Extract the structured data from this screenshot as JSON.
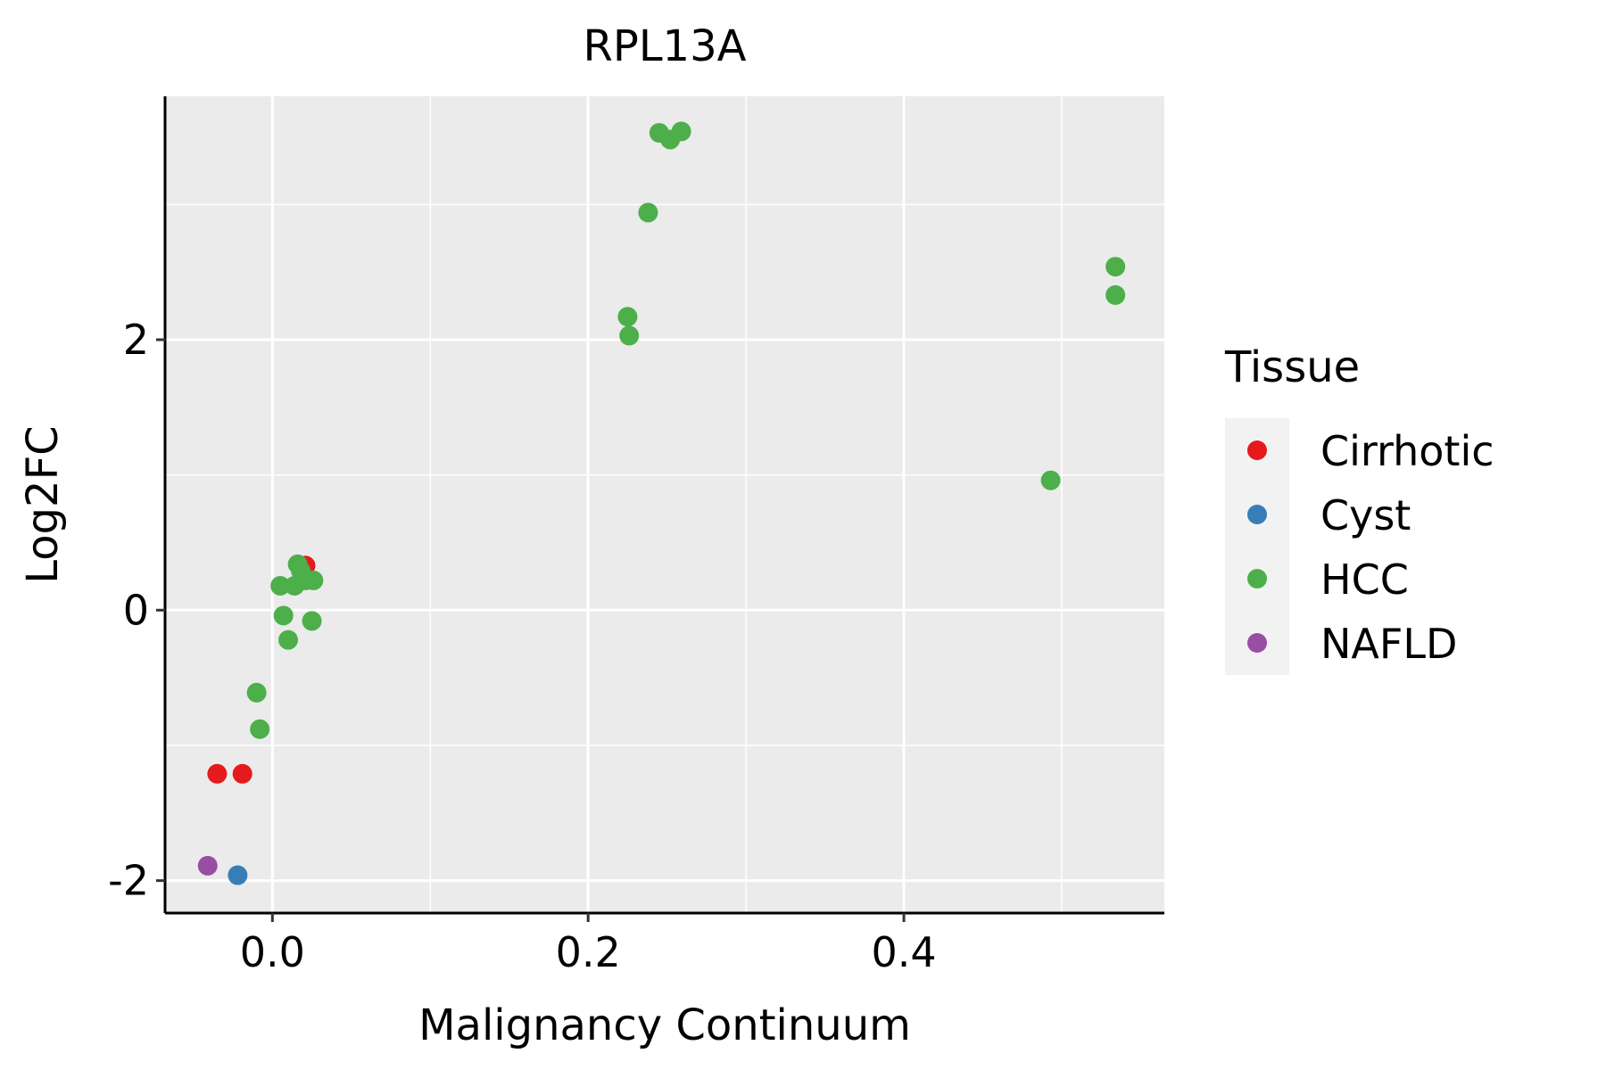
{
  "chart_data": {
    "type": "scatter",
    "title": "RPL13A",
    "xlabel": "Malignancy Continuum",
    "ylabel": "Log2FC",
    "xlim": [
      -0.068,
      0.565
    ],
    "ylim": [
      -2.24,
      3.8
    ],
    "x_major_ticks": [
      0.0,
      0.2,
      0.4
    ],
    "x_minor_ticks": [
      0.1,
      0.3,
      0.5
    ],
    "x_tick_labels": [
      "0.0",
      "0.2",
      "0.4"
    ],
    "y_major_ticks": [
      -2,
      0,
      2
    ],
    "y_minor_ticks": [
      -1,
      1,
      3
    ],
    "y_tick_labels": [
      "-2",
      "0",
      "2"
    ],
    "grid": true,
    "legend": {
      "title": "Tissue",
      "position": "right"
    },
    "series": [
      {
        "name": "Cirrhotic",
        "color": "#E41A1C",
        "points": [
          [
            -0.035,
            -1.21
          ],
          [
            -0.019,
            -1.21
          ],
          [
            0.021,
            0.33
          ]
        ]
      },
      {
        "name": "Cyst",
        "color": "#377EB8",
        "points": [
          [
            -0.022,
            -1.96
          ]
        ]
      },
      {
        "name": "HCC",
        "color": "#4DAF4A",
        "points": [
          [
            0.245,
            3.53
          ],
          [
            0.252,
            3.48
          ],
          [
            0.259,
            3.54
          ],
          [
            0.238,
            2.94
          ],
          [
            0.225,
            2.17
          ],
          [
            0.226,
            2.03
          ],
          [
            0.534,
            2.54
          ],
          [
            0.534,
            2.33
          ],
          [
            0.493,
            0.96
          ],
          [
            0.016,
            0.34
          ],
          [
            0.018,
            0.29
          ],
          [
            0.005,
            0.18
          ],
          [
            0.014,
            0.18
          ],
          [
            0.021,
            0.22
          ],
          [
            0.026,
            0.22
          ],
          [
            0.007,
            -0.04
          ],
          [
            0.025,
            -0.08
          ],
          [
            0.01,
            -0.22
          ],
          [
            -0.01,
            -0.61
          ],
          [
            -0.008,
            -0.88
          ]
        ]
      },
      {
        "name": "NAFLD",
        "color": "#984EA3",
        "points": [
          [
            -0.041,
            -1.89
          ]
        ]
      }
    ]
  }
}
